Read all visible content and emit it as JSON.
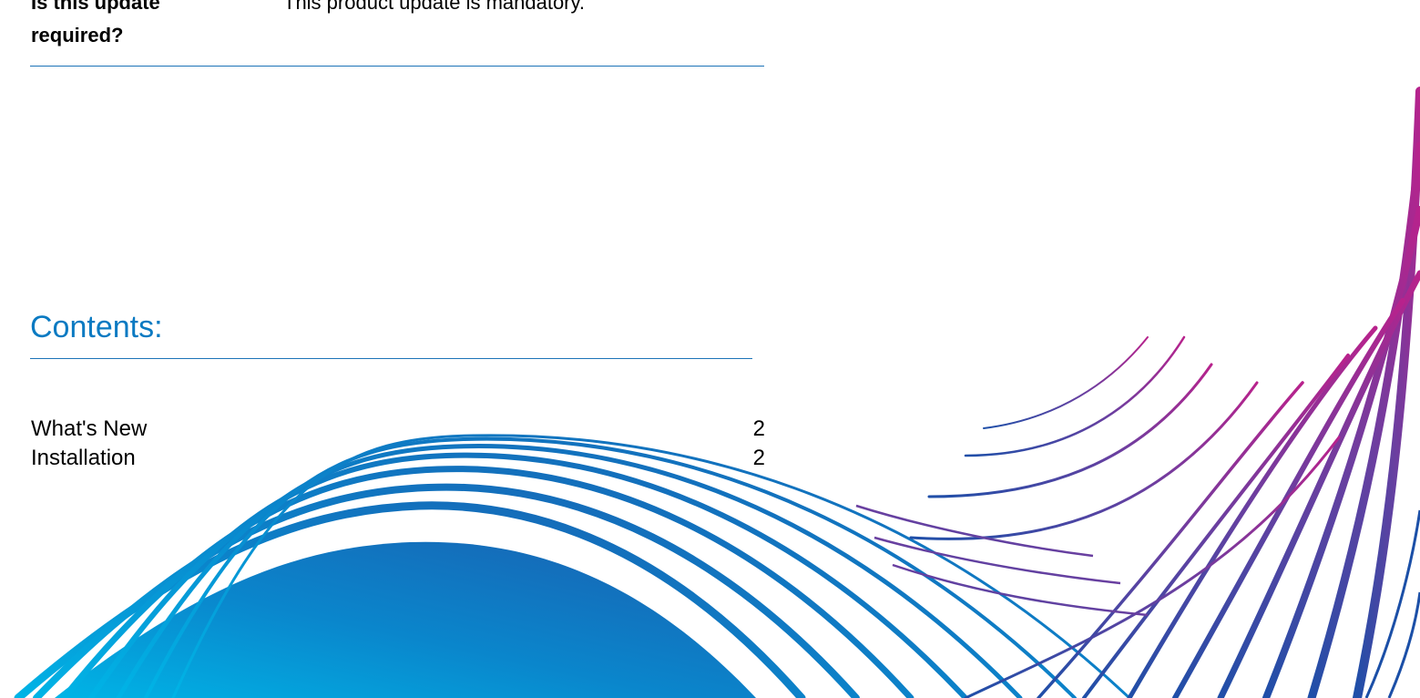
{
  "requirement": {
    "label": "Is this update required?",
    "value": "This product update is mandatory."
  },
  "contents": {
    "heading": "Contents:",
    "items": [
      {
        "title": "What's New",
        "page": "2"
      },
      {
        "title": "Installation",
        "page": "2"
      }
    ]
  },
  "colors": {
    "accent_blue": "#0a7ac2",
    "rule_blue": "#1c73b8",
    "wave_cyan": "#00b4e6",
    "wave_blue": "#1a5fb0",
    "wave_purple": "#6a3fa0",
    "wave_magenta": "#b8228c",
    "text": "#000000"
  },
  "decoration": {
    "name": "wave-graphic"
  }
}
